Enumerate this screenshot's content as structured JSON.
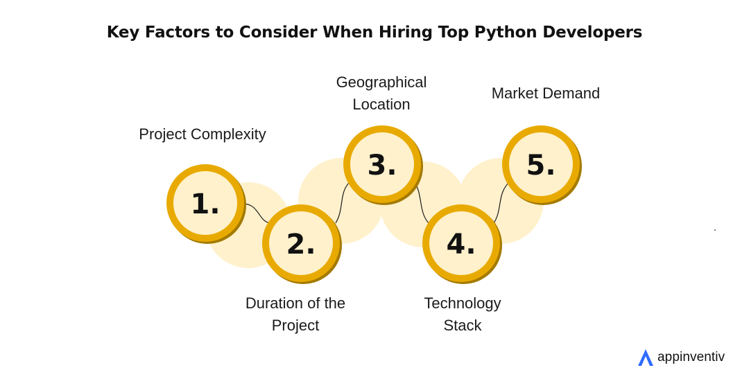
{
  "title": "Key Factors to Consider When Hiring Top Python Developers",
  "steps": [
    {
      "number": "1.",
      "label_lines": [
        "Project Complexity"
      ]
    },
    {
      "number": "2.",
      "label_lines": [
        "Duration of the",
        "Project"
      ]
    },
    {
      "number": "3.",
      "label_lines": [
        "Geographical",
        "Location"
      ]
    },
    {
      "number": "4.",
      "label_lines": [
        "Technology",
        "Stack"
      ]
    },
    {
      "number": "5.",
      "label_lines": [
        "Market Demand"
      ]
    }
  ],
  "brand": {
    "name": "appinventiv"
  },
  "colors": {
    "ring": "#E8AA00",
    "ring_shadow": "#A47A00",
    "inner": "#FFF1CC",
    "halo": "#FFF1CC",
    "text": "#111111",
    "brand_blue": "#2F6BFF"
  },
  "icons": [
    "appinventiv-logo-icon"
  ]
}
